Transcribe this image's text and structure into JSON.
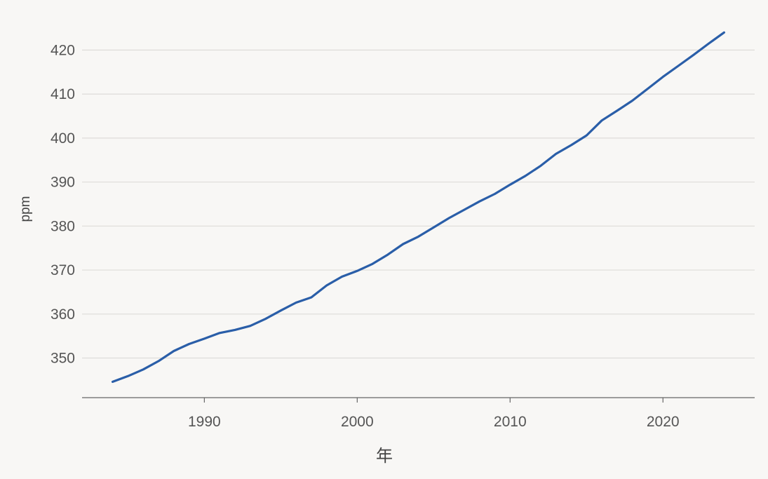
{
  "chart_data": {
    "type": "line",
    "title": "",
    "xlabel": "年",
    "ylabel": "ppm",
    "xlim": [
      1982,
      2026
    ],
    "ylim": [
      341,
      425
    ],
    "xticks": [
      1990,
      2000,
      2010,
      2020
    ],
    "yticks": [
      350,
      360,
      370,
      380,
      390,
      400,
      410,
      420
    ],
    "grid": "horizontal",
    "legend": "none",
    "series": [
      {
        "color": "#2a5ea8",
        "x": [
          1984,
          1985,
          1986,
          1987,
          1988,
          1989,
          1990,
          1991,
          1992,
          1993,
          1994,
          1995,
          1996,
          1997,
          1998,
          1999,
          2000,
          2001,
          2002,
          2003,
          2004,
          2005,
          2006,
          2007,
          2008,
          2009,
          2010,
          2011,
          2012,
          2013,
          2014,
          2015,
          2016,
          2017,
          2018,
          2019,
          2020,
          2021,
          2022,
          2023,
          2024
        ],
        "values": [
          344.6,
          345.9,
          347.4,
          349.3,
          351.6,
          353.2,
          354.4,
          355.7,
          356.4,
          357.3,
          358.9,
          360.8,
          362.6,
          363.8,
          366.5,
          368.5,
          369.8,
          371.4,
          373.5,
          375.9,
          377.6,
          379.7,
          381.8,
          383.7,
          385.6,
          387.3,
          389.4,
          391.4,
          393.7,
          396.4,
          398.4,
          400.6,
          404.0,
          406.2,
          408.5,
          411.2,
          413.9,
          416.4,
          418.9,
          421.5,
          424.0
        ]
      }
    ]
  }
}
